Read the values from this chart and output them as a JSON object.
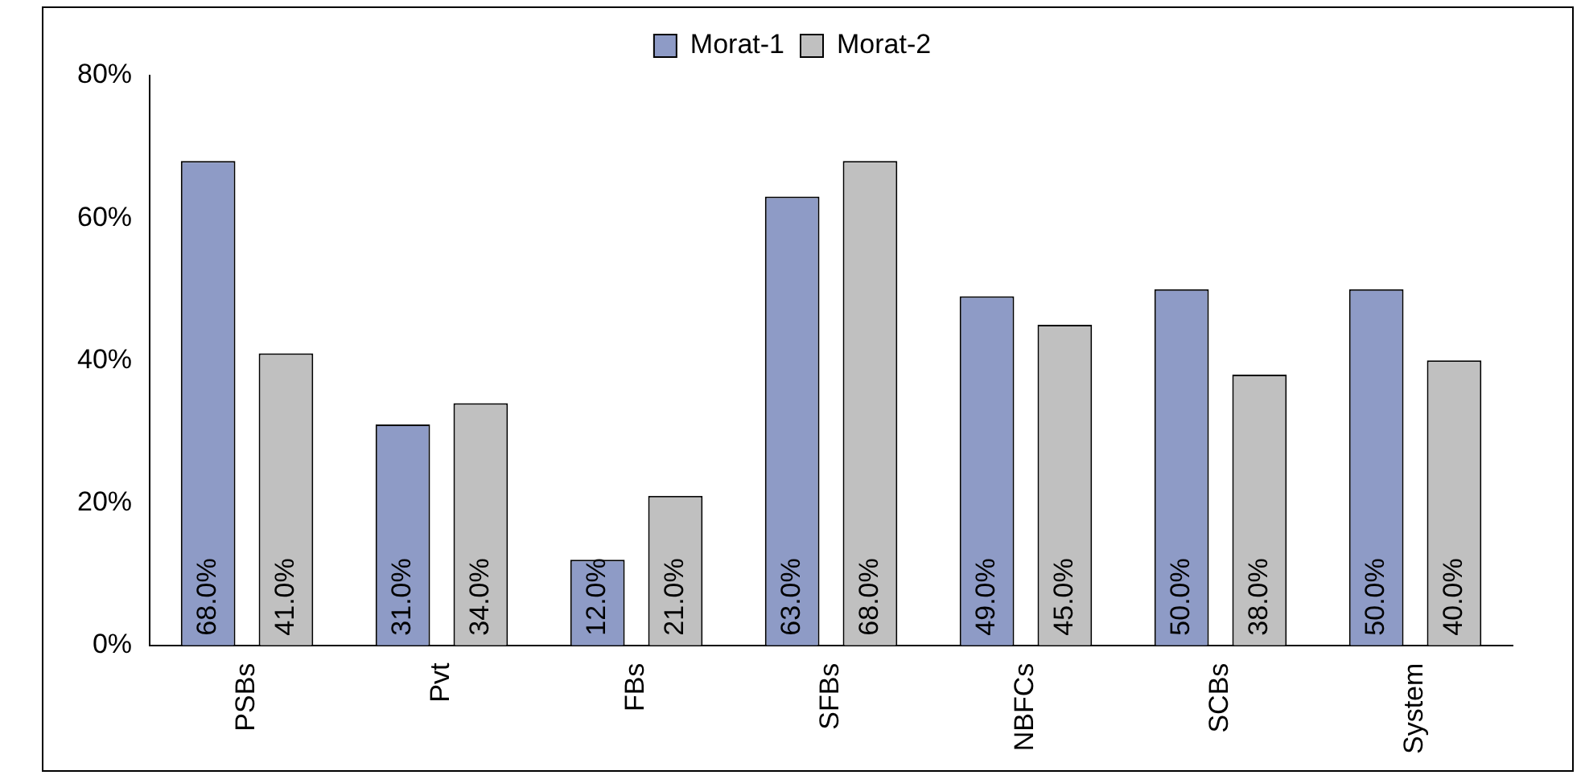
{
  "chart_data": {
    "type": "bar",
    "categories": [
      "PSBs",
      "Pvt",
      "FBs",
      "SFBs",
      "NBFCs",
      "SCBs",
      "System"
    ],
    "series": [
      {
        "name": "Morat-1",
        "color": "#8e9bc6",
        "values": [
          68,
          31,
          12,
          63,
          49,
          50,
          50
        ],
        "value_labels": [
          "68.0%",
          "31.0%",
          "12.0%",
          "63.0%",
          "49.0%",
          "50.0%",
          "50.0%"
        ]
      },
      {
        "name": "Morat-2",
        "color": "#c0c0c0",
        "values": [
          41,
          34,
          21,
          68,
          45,
          38,
          40
        ],
        "value_labels": [
          "41.0%",
          "34.0%",
          "21.0%",
          "68.0%",
          "45.0%",
          "38.0%",
          "40.0%"
        ]
      }
    ],
    "ylim": [
      0,
      80
    ],
    "yticks": [
      {
        "value": 0,
        "label": "0%"
      },
      {
        "value": 20,
        "label": "20%"
      },
      {
        "value": 40,
        "label": "40%"
      },
      {
        "value": 60,
        "label": "60%"
      },
      {
        "value": 80,
        "label": "80%"
      }
    ],
    "grid": false,
    "legend": "top"
  }
}
